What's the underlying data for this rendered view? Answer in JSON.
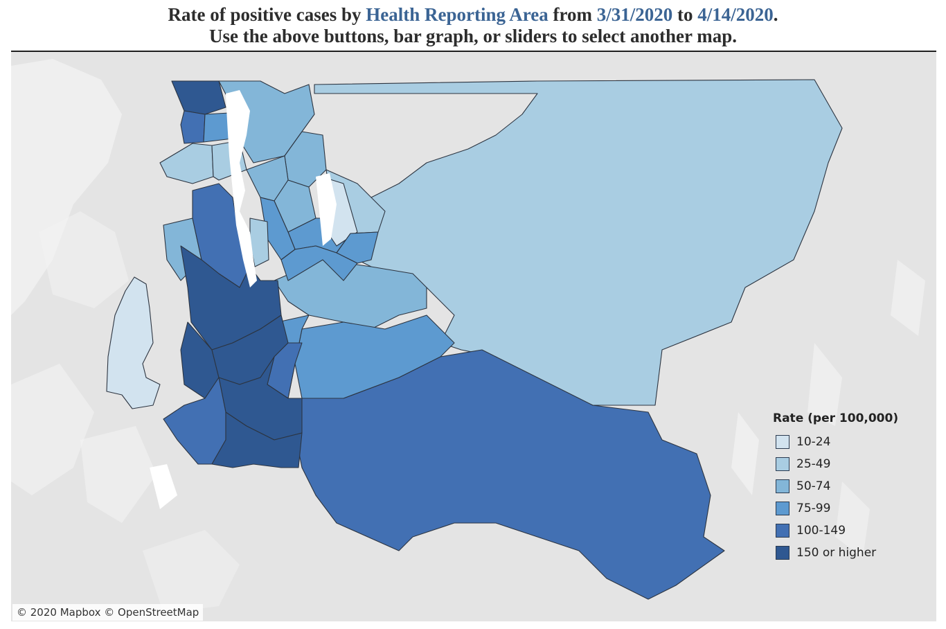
{
  "header": {
    "line1_prefix": "Rate of positive cases by ",
    "line1_area": "Health Reporting Area",
    "line1_from": " from ",
    "line1_start": "3/31/2020",
    "line1_to": " to ",
    "line1_end": "4/14/2020",
    "line1_suffix": ".",
    "line2": "Use the above buttons, bar graph, or sliders to select another map."
  },
  "legend": {
    "title": "Rate (per 100,000)",
    "items": [
      {
        "label": "10-24",
        "color": "#d2e3ef"
      },
      {
        "label": "25-49",
        "color": "#a9cde2"
      },
      {
        "label": "50-74",
        "color": "#83b6d8"
      },
      {
        "label": "75-99",
        "color": "#5d9ad0"
      },
      {
        "label": "100-149",
        "color": "#4270b3"
      },
      {
        "label": "150 or higher",
        "color": "#2f5891"
      }
    ]
  },
  "regions": [
    {
      "id": "north-end",
      "bin": 5
    },
    {
      "id": "northwest-a",
      "bin": 4
    },
    {
      "id": "northwest-b",
      "bin": 3
    },
    {
      "id": "shoreline-west",
      "bin": 1
    },
    {
      "id": "shoreline-east",
      "bin": 1
    },
    {
      "id": "north-central",
      "bin": 2
    },
    {
      "id": "bothell",
      "bin": 2
    },
    {
      "id": "kenmore",
      "bin": 1
    },
    {
      "id": "kirkland",
      "bin": 2
    },
    {
      "id": "woodinville",
      "bin": 2
    },
    {
      "id": "redmond",
      "bin": 3
    },
    {
      "id": "sammamish",
      "bin": 0
    },
    {
      "id": "bellevue-north",
      "bin": 3
    },
    {
      "id": "bellevue-south",
      "bin": 3
    },
    {
      "id": "mercer-island",
      "bin": 1
    },
    {
      "id": "issaquah",
      "bin": 3
    },
    {
      "id": "snoqualmie",
      "bin": 2
    },
    {
      "id": "west-seattle",
      "bin": 2
    },
    {
      "id": "seattle-central",
      "bin": 4
    },
    {
      "id": "seattle-south",
      "bin": 5
    },
    {
      "id": "burien",
      "bin": 5
    },
    {
      "id": "tukwila",
      "bin": 5
    },
    {
      "id": "renton",
      "bin": 4
    },
    {
      "id": "kent-east",
      "bin": 3
    },
    {
      "id": "maple-valley",
      "bin": 3
    },
    {
      "id": "kent",
      "bin": 5
    },
    {
      "id": "federal-way",
      "bin": 4
    },
    {
      "id": "auburn",
      "bin": 5
    },
    {
      "id": "enumclaw",
      "bin": 4
    },
    {
      "id": "northeast-king",
      "bin": 1
    },
    {
      "id": "vashon",
      "bin": 0
    }
  ],
  "attribution": "© 2020 Mapbox © OpenStreetMap"
}
